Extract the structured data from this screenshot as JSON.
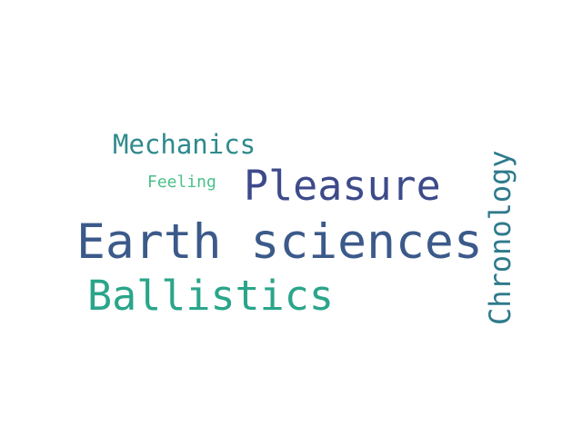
{
  "word_cloud": {
    "words": [
      {
        "text": "Earth sciences",
        "color": "#3b5a8a"
      },
      {
        "text": "Pleasure",
        "color": "#3d4a8a"
      },
      {
        "text": "Ballistics",
        "color": "#2aa58a"
      },
      {
        "text": "Mechanics",
        "color": "#2e8a8c"
      },
      {
        "text": "Feeling",
        "color": "#4cc08a"
      },
      {
        "text": "Chronology",
        "color": "#2e7a8c"
      }
    ]
  }
}
